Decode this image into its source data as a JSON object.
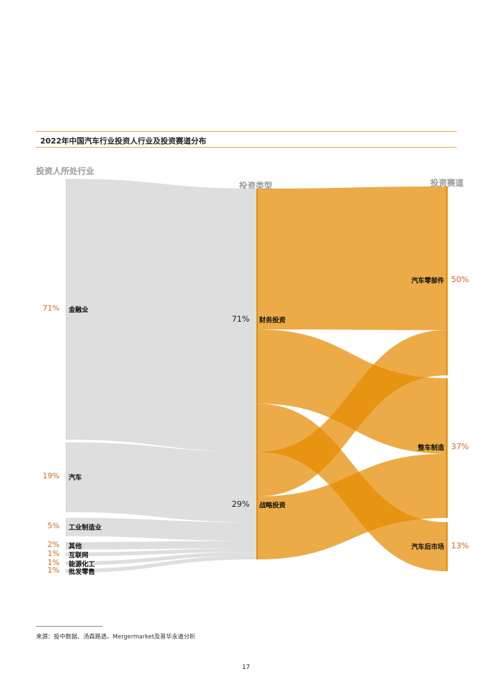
{
  "title": "2022年中国汽车行业投资人行业及投资赛道分布",
  "source": "来源：投中数据、汤森路透、Mergermarket及普华永道分析",
  "page_number": "17",
  "colors": {
    "left_flow": "#dedede",
    "right_flow": "#e48a00",
    "overlap": "#c85200",
    "rule": "#e0a33a",
    "pct_accent": "#d2691e"
  },
  "chart_data": {
    "type": "sankey",
    "column_headers": {
      "left": "投资人所处行业",
      "middle": "投资类型",
      "right": "投资赛道"
    },
    "left_nodes": [
      {
        "name": "金融业",
        "pct": "71%",
        "value": 71
      },
      {
        "name": "汽车",
        "pct": "19%",
        "value": 19
      },
      {
        "name": "工业制造业",
        "pct": "5%",
        "value": 5
      },
      {
        "name": "其他",
        "pct": "2%",
        "value": 2
      },
      {
        "name": "互联网",
        "pct": "1%",
        "value": 1
      },
      {
        "name": "能源化工",
        "pct": "1%",
        "value": 1
      },
      {
        "name": "批发零售",
        "pct": "1%",
        "value": 1
      }
    ],
    "middle_nodes": [
      {
        "name": "财务投资",
        "pct": "71%",
        "value": 71
      },
      {
        "name": "战略投资",
        "pct": "29%",
        "value": 29
      }
    ],
    "right_nodes": [
      {
        "name": "汽车零部件",
        "pct": "50%",
        "value": 50
      },
      {
        "name": "整车制造",
        "pct": "37%",
        "value": 37
      },
      {
        "name": "汽车后市场",
        "pct": "13%",
        "value": 13
      }
    ],
    "links_left_to_middle": [
      {
        "source": "金融业",
        "target": "财务投资",
        "value": 71
      },
      {
        "source": "汽车",
        "target": "战略投资",
        "value": 19
      },
      {
        "source": "工业制造业",
        "target": "战略投资",
        "value": 5
      },
      {
        "source": "其他",
        "target": "战略投资",
        "value": 2
      },
      {
        "source": "互联网",
        "target": "战略投资",
        "value": 1
      },
      {
        "source": "能源化工",
        "target": "战略投资",
        "value": 1
      },
      {
        "source": "批发零售",
        "target": "战略投资",
        "value": 1
      }
    ],
    "links_middle_to_right": [
      {
        "source": "财务投资",
        "target": "汽车零部件",
        "value": 38
      },
      {
        "source": "财务投资",
        "target": "整车制造",
        "value": 20
      },
      {
        "source": "财务投资",
        "target": "汽车后市场",
        "value": 13
      },
      {
        "source": "战略投资",
        "target": "汽车零部件",
        "value": 12
      },
      {
        "source": "战略投资",
        "target": "整车制造",
        "value": 17
      }
    ]
  }
}
